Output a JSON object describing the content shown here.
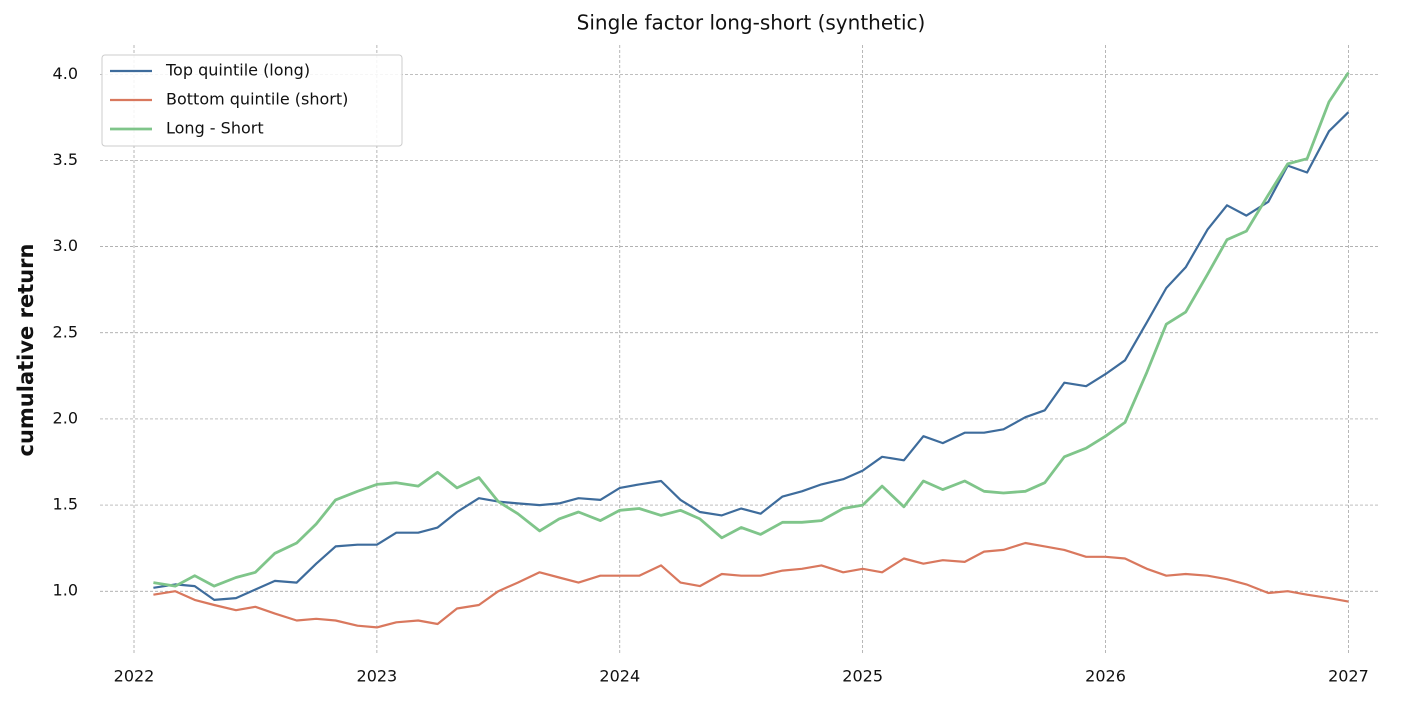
{
  "chart_data": {
    "type": "line",
    "title": "Single factor long-short (synthetic)",
    "y_label": "cumulative return",
    "x": [
      2022.08,
      2022.17,
      2022.25,
      2022.33,
      2022.42,
      2022.5,
      2022.58,
      2022.67,
      2022.75,
      2022.83,
      2022.92,
      2023,
      2023.08,
      2023.17,
      2023.25,
      2023.33,
      2023.42,
      2023.5,
      2023.58,
      2023.67,
      2023.75,
      2023.83,
      2023.92,
      2024,
      2024.08,
      2024.17,
      2024.25,
      2024.33,
      2024.42,
      2024.5,
      2024.58,
      2024.67,
      2024.75,
      2024.83,
      2024.92,
      2025,
      2025.08,
      2025.17,
      2025.25,
      2025.33,
      2025.42,
      2025.5,
      2025.58,
      2025.67,
      2025.75,
      2025.83,
      2025.92,
      2026,
      2026.08,
      2026.17,
      2026.25,
      2026.33,
      2026.42,
      2026.5,
      2026.58,
      2026.67,
      2026.75,
      2026.83,
      2026.92,
      2027
    ],
    "series": [
      {
        "name": "Top quintile (long)",
        "color": "#3e6c9c",
        "width": 2.2,
        "values": [
          1.02,
          1.04,
          1.03,
          0.95,
          0.96,
          1.01,
          1.06,
          1.05,
          1.16,
          1.26,
          1.27,
          1.27,
          1.34,
          1.34,
          1.37,
          1.46,
          1.54,
          1.52,
          1.51,
          1.5,
          1.51,
          1.54,
          1.53,
          1.6,
          1.62,
          1.64,
          1.53,
          1.46,
          1.44,
          1.48,
          1.45,
          1.55,
          1.58,
          1.62,
          1.65,
          1.7,
          1.78,
          1.76,
          1.9,
          1.86,
          1.92,
          1.92,
          1.94,
          2.01,
          2.05,
          2.21,
          2.19,
          2.26,
          2.34,
          2.56,
          2.76,
          2.88,
          3.1,
          3.24,
          3.18,
          3.26,
          3.47,
          3.43,
          3.67,
          3.78
        ]
      },
      {
        "name": "Bottom quintile (short)",
        "color": "#d9785e",
        "width": 2.2,
        "values": [
          0.98,
          1,
          0.95,
          0.92,
          0.89,
          0.91,
          0.87,
          0.83,
          0.84,
          0.83,
          0.8,
          0.79,
          0.82,
          0.83,
          0.81,
          0.9,
          0.92,
          1,
          1.05,
          1.11,
          1.08,
          1.05,
          1.09,
          1.09,
          1.09,
          1.15,
          1.05,
          1.03,
          1.1,
          1.09,
          1.09,
          1.12,
          1.13,
          1.15,
          1.11,
          1.13,
          1.11,
          1.19,
          1.16,
          1.18,
          1.17,
          1.23,
          1.24,
          1.28,
          1.26,
          1.24,
          1.2,
          1.2,
          1.19,
          1.13,
          1.09,
          1.1,
          1.09,
          1.07,
          1.04,
          0.99,
          1,
          0.98,
          0.96,
          0.94
        ]
      },
      {
        "name": "Long - Short",
        "color": "#7fc58a",
        "width": 2.8,
        "values": [
          1.05,
          1.03,
          1.09,
          1.03,
          1.08,
          1.11,
          1.22,
          1.28,
          1.39,
          1.53,
          1.58,
          1.62,
          1.63,
          1.61,
          1.69,
          1.6,
          1.66,
          1.52,
          1.45,
          1.35,
          1.42,
          1.46,
          1.41,
          1.47,
          1.48,
          1.44,
          1.47,
          1.42,
          1.31,
          1.37,
          1.33,
          1.4,
          1.4,
          1.41,
          1.48,
          1.5,
          1.61,
          1.49,
          1.64,
          1.59,
          1.64,
          1.58,
          1.57,
          1.58,
          1.63,
          1.78,
          1.83,
          1.9,
          1.98,
          2.27,
          2.55,
          2.62,
          2.84,
          3.04,
          3.09,
          3.3,
          3.48,
          3.51,
          3.84,
          4.01
        ]
      }
    ],
    "xlim": [
      2021.86,
      2027.13
    ],
    "xticks": [
      2022,
      2023,
      2024,
      2025,
      2026,
      2027
    ],
    "ylim": [
      0.63,
      4.17
    ],
    "yticks": [
      {
        "value": 1,
        "label": "1.0"
      },
      {
        "value": 1.5,
        "label": "1.5"
      },
      {
        "value": 2,
        "label": "2.0"
      },
      {
        "value": 2.5,
        "label": "2.5"
      },
      {
        "value": 3,
        "label": "3.0"
      },
      {
        "value": 3.5,
        "label": "3.5"
      },
      {
        "value": 4,
        "label": "4.0"
      }
    ],
    "grid": true,
    "legend": "upper left"
  }
}
